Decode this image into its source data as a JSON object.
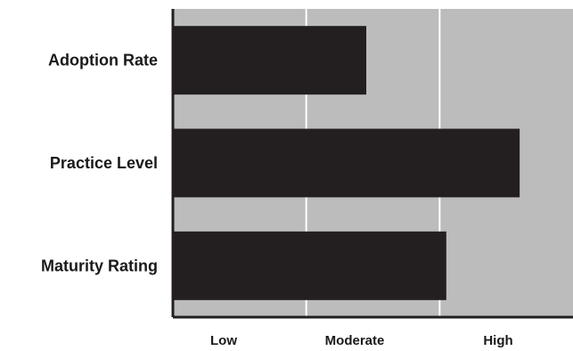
{
  "chart_data": {
    "type": "bar",
    "orientation": "horizontal",
    "title": "",
    "xlabel": "",
    "ylabel": "",
    "categories": [
      "Adoption Rate",
      "Practice Level",
      "Maturity Rating"
    ],
    "values": [
      1.45,
      2.6,
      2.05
    ],
    "xlim": [
      0,
      3
    ],
    "x_ticks": [
      "Low",
      "Moderate",
      "High"
    ],
    "grid": true,
    "legend": "none",
    "colors": {
      "bar": "#231f20",
      "plot_background": "#bcbcbd",
      "gridline": "#ffffff",
      "axis": "#231f20",
      "text": "#1a1a1a"
    }
  }
}
